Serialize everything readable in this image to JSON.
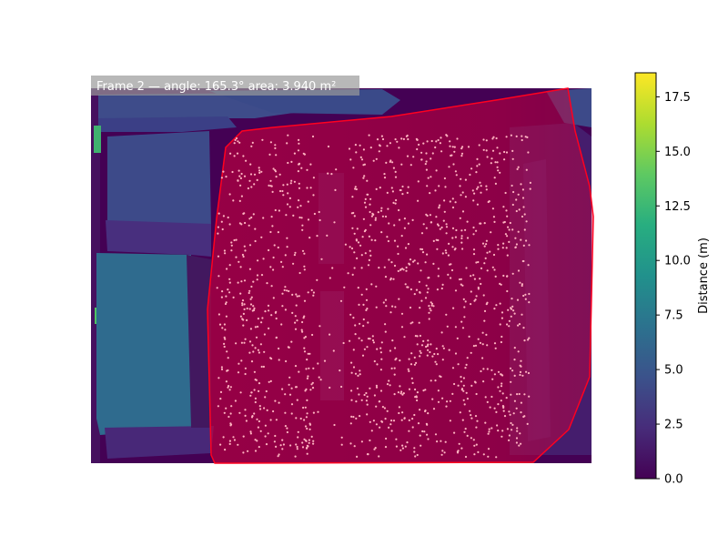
{
  "figure": {
    "title_text": "Frame 2 — angle: 165.3°  area: 3.940 m²"
  },
  "colors": {
    "depth_background": "#440154",
    "polygon_fill": "#c8003c",
    "polygon_stroke": "#ff0020",
    "points": "#ffb3c0",
    "label_box": "#9a9a9a"
  },
  "colorbar": {
    "label": "Distance (m)",
    "ticks": [
      "0.0",
      "2.5",
      "5.0",
      "7.5",
      "10.0",
      "12.5",
      "15.0",
      "17.5"
    ],
    "tick_values": [
      0,
      2.5,
      5.0,
      7.5,
      10.0,
      12.5,
      15.0,
      17.5
    ],
    "range": [
      0,
      18.6
    ],
    "colormap": "viridis"
  },
  "chart_data": {
    "type": "heatmap",
    "title": "Frame 2 — angle: 165.3°  area: 3.940 m²",
    "colorbar_label": "Distance (m)",
    "value_range": [
      0,
      18.6
    ],
    "colormap": "viridis",
    "annotations": {
      "angle_deg": 165.3,
      "area_m2": 3.94
    },
    "overlays": [
      "highlighted polygon region (red)",
      "scattered detection points (pink)"
    ]
  }
}
